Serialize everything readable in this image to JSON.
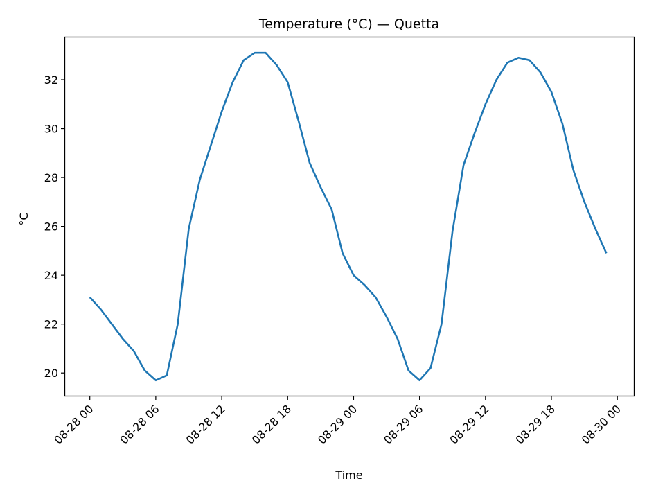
{
  "chart_data": {
    "type": "line",
    "title": "Temperature (°C) — Quetta",
    "xlabel": "Time",
    "ylabel": "°C",
    "x_ticks": [
      "08-28 00",
      "08-28 06",
      "08-28 12",
      "08-28 18",
      "08-29 00",
      "08-29 06",
      "08-29 12",
      "08-29 18",
      "08-30 00"
    ],
    "y_ticks": [
      20,
      22,
      24,
      26,
      28,
      30,
      32
    ],
    "xlim": [
      "2024-08-27 21:45",
      "2024-08-30 01:30"
    ],
    "ylim": [
      19.07,
      33.73
    ],
    "grid": false,
    "color": "#1f77b4",
    "series": [
      {
        "x": [
          "08-28 00:00",
          "08-28 01:00",
          "08-28 02:00",
          "08-28 03:00",
          "08-28 04:00",
          "08-28 05:00",
          "08-28 06:00",
          "08-28 07:00",
          "08-28 08:00",
          "08-28 09:00",
          "08-28 10:00",
          "08-28 11:00",
          "08-28 12:00",
          "08-28 13:00",
          "08-28 14:00",
          "08-28 15:00",
          "08-28 16:00",
          "08-28 17:00",
          "08-28 18:00",
          "08-28 19:00",
          "08-28 20:00",
          "08-28 21:00",
          "08-28 22:00",
          "08-28 23:00",
          "08-29 00:00",
          "08-29 01:00",
          "08-29 02:00",
          "08-29 03:00",
          "08-29 04:00",
          "08-29 05:00",
          "08-29 06:00",
          "08-29 07:00",
          "08-29 08:00",
          "08-29 09:00",
          "08-29 10:00",
          "08-29 11:00",
          "08-29 12:00",
          "08-29 13:00",
          "08-29 14:00",
          "08-29 15:00",
          "08-29 16:00",
          "08-29 17:00",
          "08-29 18:00",
          "08-29 19:00",
          "08-29 20:00",
          "08-29 21:00",
          "08-29 22:00",
          "08-29 23:00"
        ],
        "values": [
          23.1,
          22.6,
          22.0,
          21.4,
          20.9,
          20.1,
          19.7,
          19.9,
          22.0,
          25.9,
          27.9,
          29.3,
          30.7,
          31.9,
          32.8,
          33.1,
          33.1,
          32.6,
          31.9,
          30.3,
          28.6,
          27.6,
          26.7,
          24.9,
          24.0,
          23.6,
          23.1,
          22.3,
          21.4,
          20.1,
          19.7,
          20.2,
          22.0,
          25.8,
          28.5,
          29.8,
          31.0,
          32.0,
          32.7,
          32.9,
          32.8,
          32.3,
          31.5,
          30.2,
          28.3,
          27.0,
          25.9,
          24.9
        ]
      }
    ]
  }
}
